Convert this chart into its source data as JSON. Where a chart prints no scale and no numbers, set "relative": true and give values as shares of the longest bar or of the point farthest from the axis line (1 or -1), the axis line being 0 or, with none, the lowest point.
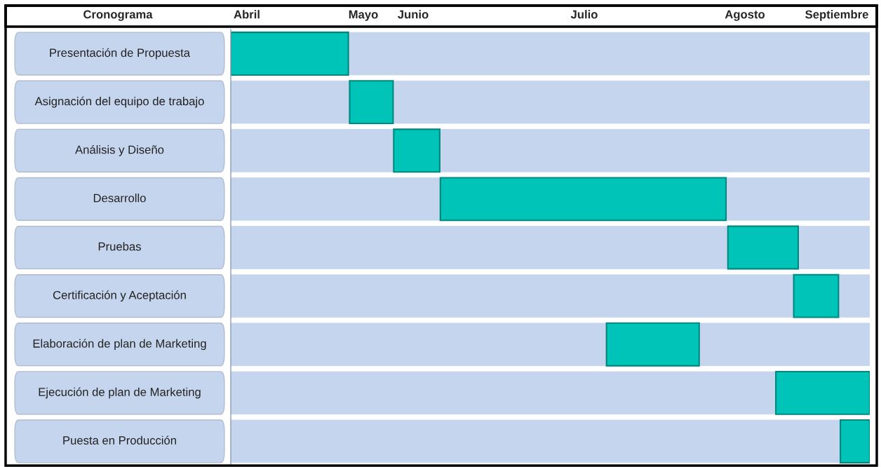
{
  "chart_data": {
    "type": "bar",
    "orientation": "horizontal",
    "relative": true,
    "stacked": true,
    "ylabel": "Cronograma",
    "categories": [
      "Presentación de Propuesta",
      "Asignación del equipo de trabajo",
      "Análisis y Diseño",
      "Desarrollo",
      "Pruebas",
      "Certificación y Aceptación",
      "Elaboración de plan de Marketing",
      "Ejecución de plan de Marketing",
      "Puesta en Producción"
    ],
    "series": [
      {
        "color": "#c5d5ee",
        "values": [
          0.0,
          0.186,
          0.255,
          0.328,
          0.778,
          0.881,
          0.588,
          0.853,
          0.954
        ]
      },
      {
        "color": "#00c4b8",
        "values": [
          0.184,
          0.068,
          0.072,
          0.447,
          0.11,
          0.07,
          0.145,
          0.147,
          0.046
        ]
      },
      {
        "color": "#c5d5ee",
        "values": [
          0.816,
          0.746,
          0.673,
          0.225,
          0.112,
          0.049,
          0.267,
          0.0,
          0.0
        ]
      }
    ],
    "annotations": [
      "Abril",
      "Mayo",
      "Junio",
      "Julio",
      "Agosto",
      "Septiembre"
    ]
  }
}
